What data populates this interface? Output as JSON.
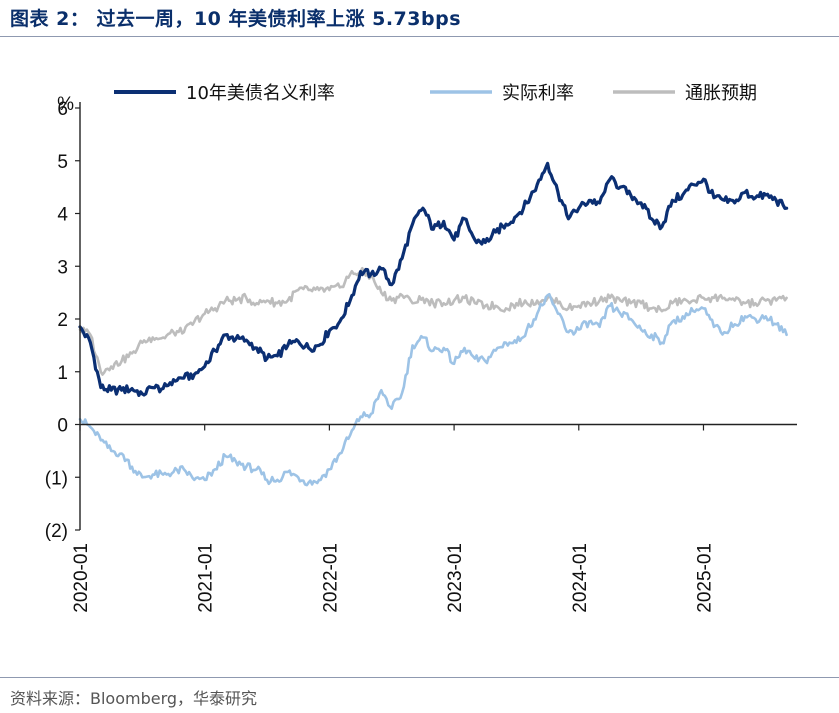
{
  "figure": {
    "title": "图表 2：  过去一周，10 年美债利率上涨 5.73bps",
    "source": "资料来源：Bloomberg，华泰研究"
  },
  "colors": {
    "nominal": "#0b2f73",
    "real": "#9dc3e6",
    "breakeven": "#bdbdbd",
    "title": "#0a2f6b"
  },
  "chart_data": {
    "type": "line",
    "title": "",
    "xlabel": "",
    "ylabel": "%",
    "ylim": [
      -2,
      6
    ],
    "yticks": [
      -2,
      -1,
      0,
      1,
      2,
      3,
      4,
      5,
      6
    ],
    "ytick_labels": [
      "(2)",
      "(1)",
      "0",
      "1",
      "2",
      "3",
      "4",
      "5",
      "6"
    ],
    "xlim": [
      "2020-01",
      "2025-10"
    ],
    "xticks": [
      "2020-01",
      "2021-01",
      "2022-01",
      "2023-01",
      "2024-01",
      "2025-01"
    ],
    "legend_position": "top",
    "grid": false,
    "x": [
      "2020-01",
      "2020-02",
      "2020-03",
      "2020-04",
      "2020-05",
      "2020-06",
      "2020-07",
      "2020-08",
      "2020-09",
      "2020-10",
      "2020-11",
      "2020-12",
      "2021-01",
      "2021-02",
      "2021-03",
      "2021-04",
      "2021-05",
      "2021-06",
      "2021-07",
      "2021-08",
      "2021-09",
      "2021-10",
      "2021-11",
      "2021-12",
      "2022-01",
      "2022-02",
      "2022-03",
      "2022-04",
      "2022-05",
      "2022-06",
      "2022-07",
      "2022-08",
      "2022-09",
      "2022-10",
      "2022-11",
      "2022-12",
      "2023-01",
      "2023-02",
      "2023-03",
      "2023-04",
      "2023-05",
      "2023-06",
      "2023-07",
      "2023-08",
      "2023-09",
      "2023-10",
      "2023-11",
      "2023-12",
      "2024-01",
      "2024-02",
      "2024-03",
      "2024-04",
      "2024-05",
      "2024-06",
      "2024-07",
      "2024-08",
      "2024-09",
      "2024-10",
      "2024-11",
      "2024-12",
      "2025-01",
      "2025-02",
      "2025-03",
      "2025-04",
      "2025-05",
      "2025-06",
      "2025-07",
      "2025-08",
      "2025-09"
    ],
    "series": [
      {
        "name": "10年美债名义利率",
        "values": [
          1.85,
          1.55,
          0.7,
          0.65,
          0.65,
          0.68,
          0.58,
          0.7,
          0.68,
          0.85,
          0.88,
          0.95,
          1.1,
          1.4,
          1.7,
          1.62,
          1.6,
          1.45,
          1.25,
          1.3,
          1.5,
          1.58,
          1.45,
          1.5,
          1.78,
          1.95,
          2.35,
          2.9,
          2.85,
          2.95,
          2.65,
          3.15,
          3.8,
          4.1,
          3.7,
          3.85,
          3.5,
          3.9,
          3.5,
          3.45,
          3.65,
          3.8,
          3.95,
          4.2,
          4.55,
          4.95,
          4.4,
          3.9,
          4.1,
          4.25,
          4.2,
          4.65,
          4.5,
          4.35,
          4.2,
          3.9,
          3.75,
          4.25,
          4.35,
          4.55,
          4.65,
          4.3,
          4.25,
          4.2,
          4.4,
          4.3,
          4.35,
          4.25,
          4.1
        ]
      },
      {
        "name": "实际利率",
        "values": [
          0.1,
          -0.05,
          -0.3,
          -0.5,
          -0.55,
          -0.8,
          -1.0,
          -0.95,
          -0.95,
          -0.9,
          -0.85,
          -1.05,
          -1.05,
          -0.85,
          -0.6,
          -0.7,
          -0.8,
          -0.85,
          -1.05,
          -1.05,
          -0.9,
          -1.0,
          -1.1,
          -1.05,
          -0.85,
          -0.55,
          -0.2,
          0.15,
          0.2,
          0.65,
          0.3,
          0.6,
          1.5,
          1.65,
          1.4,
          1.45,
          1.15,
          1.45,
          1.25,
          1.2,
          1.4,
          1.55,
          1.55,
          1.8,
          2.1,
          2.45,
          2.1,
          1.75,
          1.8,
          1.95,
          1.85,
          2.25,
          2.1,
          2.0,
          1.8,
          1.7,
          1.55,
          1.95,
          2.05,
          2.15,
          2.2,
          1.85,
          1.75,
          1.9,
          2.05,
          2.0,
          2.05,
          1.9,
          1.7
        ]
      },
      {
        "name": "通胀预期",
        "values": [
          1.8,
          1.7,
          1.0,
          1.1,
          1.2,
          1.35,
          1.55,
          1.65,
          1.65,
          1.75,
          1.75,
          1.95,
          2.1,
          2.2,
          2.35,
          2.35,
          2.4,
          2.3,
          2.35,
          2.3,
          2.35,
          2.55,
          2.55,
          2.55,
          2.55,
          2.6,
          2.85,
          2.9,
          2.8,
          2.5,
          2.35,
          2.45,
          2.3,
          2.4,
          2.3,
          2.3,
          2.35,
          2.4,
          2.3,
          2.25,
          2.25,
          2.2,
          2.3,
          2.3,
          2.35,
          2.4,
          2.3,
          2.2,
          2.25,
          2.3,
          2.35,
          2.4,
          2.35,
          2.3,
          2.3,
          2.2,
          2.15,
          2.3,
          2.35,
          2.35,
          2.4,
          2.4,
          2.4,
          2.35,
          2.3,
          2.3,
          2.35,
          2.35,
          2.4
        ]
      }
    ]
  }
}
